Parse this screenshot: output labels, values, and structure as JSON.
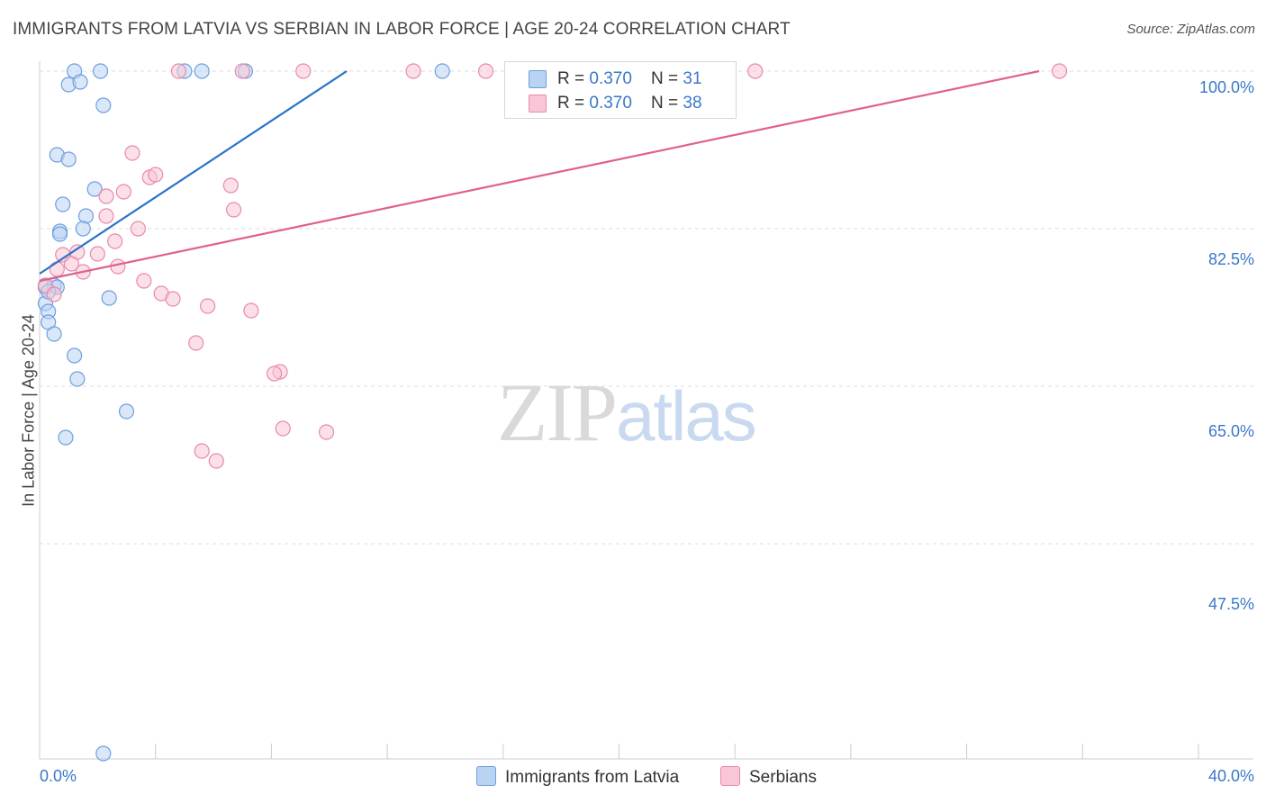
{
  "title": "IMMIGRANTS FROM LATVIA VS SERBIAN IN LABOR FORCE | AGE 20-24 CORRELATION CHART",
  "source": "Source: ZipAtlas.com",
  "watermark": {
    "zip": "ZIP",
    "atlas": "atlas"
  },
  "legend": {
    "rows": [
      {
        "r_label": "R = ",
        "r_value": "0.370",
        "n_label": "N = ",
        "n_value": "31"
      },
      {
        "r_label": "R = ",
        "r_value": "0.370",
        "n_label": "N = ",
        "n_value": "38"
      }
    ]
  },
  "bottom_legend": {
    "latvia": "Immigrants from Latvia",
    "serbians": "Serbians"
  },
  "colors": {
    "latvia_fill": "#b9d3f3",
    "latvia_stroke": "#6d9fdf",
    "latvia_line": "#2b72c9",
    "serbian_fill": "#f8c6d6",
    "serbian_stroke": "#e88aab",
    "serbian_line": "#e0608f",
    "axis_label": "#3a78c9",
    "grid": "#dddddd"
  },
  "chart_data": {
    "type": "scatter",
    "title": "IMMIGRANTS FROM LATVIA VS SERBIAN IN LABOR FORCE | AGE 20-24 CORRELATION CHART",
    "xlabel": "",
    "ylabel": "In Labor Force | Age 20-24",
    "xlim": [
      0,
      40
    ],
    "ylim": [
      23.6,
      100
    ],
    "x_tick_labels": [
      "0.0%",
      "40.0%"
    ],
    "y_ticks": [
      100,
      82.5,
      65,
      47.5
    ],
    "y_tick_labels": [
      "100.0%",
      "82.5%",
      "65.0%",
      "47.5%"
    ],
    "grid": true,
    "legend_position": "top-center",
    "series": [
      {
        "name": "Immigrants from Latvia",
        "points": [
          [
            1.2,
            100
          ],
          [
            2.1,
            100
          ],
          [
            5.0,
            100
          ],
          [
            5.6,
            100
          ],
          [
            7.1,
            100
          ],
          [
            13.9,
            100
          ],
          [
            1.0,
            98.5
          ],
          [
            1.4,
            98.8
          ],
          [
            2.2,
            96.2
          ],
          [
            0.6,
            90.7
          ],
          [
            1.0,
            90.2
          ],
          [
            1.9,
            86.9
          ],
          [
            0.8,
            85.2
          ],
          [
            1.6,
            83.9
          ],
          [
            0.7,
            82.2
          ],
          [
            0.7,
            81.9
          ],
          [
            1.5,
            82.5
          ],
          [
            0.2,
            76.0
          ],
          [
            0.5,
            76.2
          ],
          [
            0.6,
            76.0
          ],
          [
            0.2,
            74.2
          ],
          [
            0.3,
            73.3
          ],
          [
            2.4,
            74.8
          ],
          [
            0.3,
            72.1
          ],
          [
            0.5,
            70.8
          ],
          [
            1.2,
            68.4
          ],
          [
            1.3,
            65.8
          ],
          [
            3.0,
            62.2
          ],
          [
            0.9,
            59.3
          ],
          [
            2.2,
            24.2
          ],
          [
            0.3,
            75.5
          ]
        ],
        "trend": {
          "x": [
            0,
            10.6
          ],
          "y": [
            77.5,
            100
          ]
        }
      },
      {
        "name": "Serbians",
        "points": [
          [
            4.8,
            100
          ],
          [
            7.0,
            100
          ],
          [
            9.1,
            100
          ],
          [
            12.9,
            100
          ],
          [
            15.4,
            100
          ],
          [
            24.7,
            100
          ],
          [
            35.2,
            100
          ],
          [
            3.2,
            90.9
          ],
          [
            3.8,
            88.2
          ],
          [
            4.0,
            88.5
          ],
          [
            6.6,
            87.3
          ],
          [
            2.9,
            86.6
          ],
          [
            2.3,
            86.1
          ],
          [
            6.7,
            84.6
          ],
          [
            2.3,
            83.9
          ],
          [
            3.4,
            82.5
          ],
          [
            2.6,
            81.1
          ],
          [
            0.8,
            79.6
          ],
          [
            1.3,
            79.9
          ],
          [
            2.0,
            79.7
          ],
          [
            1.1,
            78.6
          ],
          [
            2.7,
            78.3
          ],
          [
            1.5,
            77.7
          ],
          [
            0.6,
            78.0
          ],
          [
            0.2,
            76.2
          ],
          [
            0.5,
            75.2
          ],
          [
            3.6,
            76.7
          ],
          [
            4.2,
            75.3
          ],
          [
            4.6,
            74.7
          ],
          [
            5.8,
            73.9
          ],
          [
            7.3,
            73.4
          ],
          [
            5.4,
            69.8
          ],
          [
            8.3,
            66.6
          ],
          [
            8.1,
            66.4
          ],
          [
            8.4,
            60.3
          ],
          [
            9.9,
            59.9
          ],
          [
            5.6,
            57.8
          ],
          [
            6.1,
            56.7
          ]
        ],
        "trend": {
          "x": [
            0,
            34.5
          ],
          "y": [
            76.7,
            100
          ]
        }
      }
    ]
  }
}
